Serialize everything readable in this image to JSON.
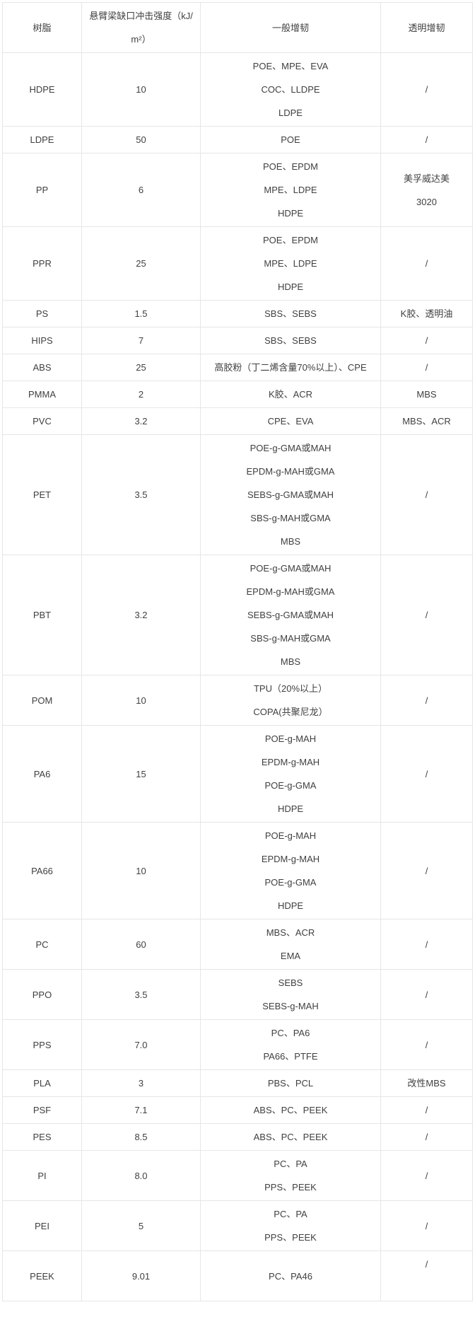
{
  "page": {
    "background_color": "#ffffff",
    "text_color": "#404040",
    "border_color": "#e6e6e6"
  },
  "table": {
    "headers": [
      "树脂",
      "悬臂梁缺口冲击强度（kJ/m²）",
      "一般增韧",
      "透明增韧"
    ],
    "rows": [
      {
        "resin": "HDPE",
        "impact_strength": "10",
        "general_toughening": [
          "POE、MPE、EVA",
          "COC、LLDPE",
          "LDPE"
        ],
        "transparent_toughening": [
          "/"
        ]
      },
      {
        "resin": "LDPE",
        "impact_strength": "50",
        "general_toughening": [
          "POE"
        ],
        "transparent_toughening": [
          "/"
        ]
      },
      {
        "resin": "PP",
        "impact_strength": "6",
        "general_toughening": [
          "POE、EPDM",
          "MPE、LDPE",
          "HDPE"
        ],
        "transparent_toughening": [
          "美孚威达美",
          "3020"
        ]
      },
      {
        "resin": "PPR",
        "impact_strength": "25",
        "general_toughening": [
          "POE、EPDM",
          "MPE、LDPE",
          "HDPE"
        ],
        "transparent_toughening": [
          "/"
        ]
      },
      {
        "resin": "PS",
        "impact_strength": "1.5",
        "general_toughening": [
          "SBS、SEBS"
        ],
        "transparent_toughening": [
          "K胶、透明油"
        ]
      },
      {
        "resin": "HIPS",
        "impact_strength": "7",
        "general_toughening": [
          "SBS、SEBS"
        ],
        "transparent_toughening": [
          "/"
        ]
      },
      {
        "resin": "ABS",
        "impact_strength": "25",
        "general_toughening": [
          "高胶粉（丁二烯含量70%以上）、CPE"
        ],
        "transparent_toughening": [
          "/"
        ]
      },
      {
        "resin": "PMMA",
        "impact_strength": "2",
        "general_toughening": [
          "K胶、ACR"
        ],
        "transparent_toughening": [
          "MBS"
        ]
      },
      {
        "resin": "PVC",
        "impact_strength": "3.2",
        "general_toughening": [
          "CPE、EVA"
        ],
        "transparent_toughening": [
          "MBS、ACR"
        ]
      },
      {
        "resin": "PET",
        "impact_strength": "3.5",
        "general_toughening": [
          "POE-g-GMA或MAH",
          "EPDM-g-MAH或GMA",
          "SEBS-g-GMA或MAH",
          "SBS-g-MAH或GMA",
          "MBS"
        ],
        "transparent_toughening": [
          "/"
        ]
      },
      {
        "resin": "PBT",
        "impact_strength": "3.2",
        "general_toughening": [
          "POE-g-GMA或MAH",
          "EPDM-g-MAH或GMA",
          "SEBS-g-GMA或MAH",
          "SBS-g-MAH或GMA",
          "MBS"
        ],
        "transparent_toughening": [
          "/"
        ]
      },
      {
        "resin": "POM",
        "impact_strength": "10",
        "general_toughening": [
          "TPU（20%以上）",
          "COPA(共聚尼龙）"
        ],
        "transparent_toughening": [
          "/"
        ]
      },
      {
        "resin": "PA6",
        "impact_strength": "15",
        "general_toughening": [
          "POE-g-MAH",
          "EPDM-g-MAH",
          "POE-g-GMA",
          "HDPE"
        ],
        "transparent_toughening": [
          "/"
        ]
      },
      {
        "resin": "PA66",
        "impact_strength": "10",
        "general_toughening": [
          "POE-g-MAH",
          "EPDM-g-MAH",
          "POE-g-GMA",
          "HDPE"
        ],
        "transparent_toughening": [
          "/"
        ]
      },
      {
        "resin": "PC",
        "impact_strength": "60",
        "general_toughening": [
          "MBS、ACR",
          "EMA"
        ],
        "transparent_toughening": [
          "/"
        ]
      },
      {
        "resin": "PPO",
        "impact_strength": "3.5",
        "general_toughening": [
          "SEBS",
          "SEBS-g-MAH"
        ],
        "transparent_toughening": [
          "/"
        ]
      },
      {
        "resin": "PPS",
        "impact_strength": "7.0",
        "general_toughening": [
          "PC、PA6",
          "PA66、PTFE"
        ],
        "transparent_toughening": [
          "/"
        ]
      },
      {
        "resin": "PLA",
        "impact_strength": "3",
        "general_toughening": [
          "PBS、PCL"
        ],
        "transparent_toughening": [
          "改性MBS"
        ]
      },
      {
        "resin": "PSF",
        "impact_strength": "7.1",
        "general_toughening": [
          "ABS、PC、PEEK"
        ],
        "transparent_toughening": [
          "/"
        ]
      },
      {
        "resin": "PES",
        "impact_strength": "8.5",
        "general_toughening": [
          "ABS、PC、PEEK"
        ],
        "transparent_toughening": [
          "/"
        ]
      },
      {
        "resin": "PI",
        "impact_strength": "8.0",
        "general_toughening": [
          "PC、PA",
          "PPS、PEEK"
        ],
        "transparent_toughening": [
          "/"
        ]
      },
      {
        "resin": "PEI",
        "impact_strength": "5",
        "general_toughening": [
          "PC、PA",
          "PPS、PEEK"
        ],
        "transparent_toughening": [
          "/"
        ]
      },
      {
        "resin": "PEEK",
        "impact_strength": "9.01",
        "general_toughening": [
          "PC、PA46"
        ],
        "transparent_toughening": [
          "/",
          ""
        ]
      }
    ]
  }
}
